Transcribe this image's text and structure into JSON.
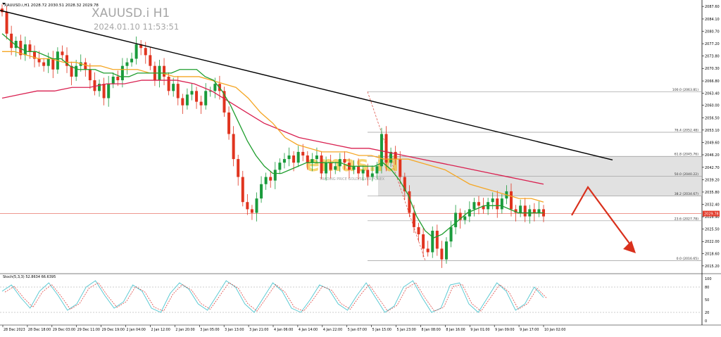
{
  "header": {
    "ohlc_line": "XAUUSD.i,H1  2028.72 2030.51 2028.32 2029.78",
    "symbol_title": "XAUUSD.i H1",
    "timestamp": "2024.01.10 11:53:51"
  },
  "watermark": {
    "text": "emas.id",
    "tagline": "TRADING PRICE GOLD/SILVER FOREX"
  },
  "price_axis": {
    "ticks": [
      "2087.60",
      "2084.10",
      "2080.70",
      "2077.20",
      "2073.80",
      "2070.30",
      "2066.80",
      "2063.40",
      "2060.00",
      "2056.50",
      "2053.10",
      "2049.60",
      "2046.20",
      "2042.70",
      "2039.20",
      "2035.80",
      "2032.40",
      "2028.90",
      "2025.50",
      "2022.00",
      "2018.60",
      "2015.20"
    ],
    "current_price_label": "2029.78",
    "range": [
      2013.8,
      2089.0
    ]
  },
  "time_axis": {
    "labels": [
      "28 Dec 2023",
      "28 Dec 18:00",
      "29 Dec 03:00",
      "29 Dec 11:00",
      "29 Dec 19:00",
      "2 Jan 04:00",
      "2 Jan 12:00",
      "2 Jan 20:00",
      "3 Jan 05:00",
      "3 Jan 13:00",
      "3 Jan 21:00",
      "4 Jan 06:00",
      "4 Jan 14:00",
      "4 Jan 22:00",
      "5 Jan 07:00",
      "5 Jan 15:00",
      "5 Jan 23:00",
      "8 Jan 08:00",
      "8 Jan 16:00",
      "9 Jan 01:00",
      "9 Jan 09:00",
      "9 Jan 17:00",
      "10 Jan 02:00"
    ]
  },
  "fibonacci": {
    "levels": [
      {
        "label": "100.0 (2063.81)",
        "price": 2063.81
      },
      {
        "label": "76.4 (2052.48)",
        "price": 2052.48
      },
      {
        "label": "61.8 (2045.76)",
        "price": 2045.76
      },
      {
        "label": "50.0 (2040.22)",
        "price": 2040.22
      },
      {
        "label": "38.2 (2034.67)",
        "price": 2034.67
      },
      {
        "label": "23.6 (2027.78)",
        "price": 2027.78
      },
      {
        "label": "0.0 (2016.65)",
        "price": 2016.65
      }
    ]
  },
  "stochastic": {
    "label": "Stoch(5,3,3) 52.8634 66.6395",
    "ticks": [
      "100",
      "80",
      "50",
      "20",
      "0"
    ],
    "range": [
      0,
      100
    ]
  },
  "colors": {
    "bull": "#1a9b3c",
    "bear": "#e0341f",
    "ma_fast": "#1f9e2e",
    "ma_mid": "#f5a623",
    "ma_slow": "#d92050",
    "trendline": "#000000",
    "zone": "#d7d7d7",
    "arrow": "#d9301c",
    "stoch_main": "#4fc6d0",
    "stoch_signal": "#d9302c",
    "watermark": "#f0b400"
  },
  "chart_data": {
    "type": "candlestick",
    "title": "XAUUSD.i H1",
    "candles_close": [
      2086,
      2080,
      2076,
      2078,
      2074,
      2077,
      2075,
      2073,
      2072,
      2071,
      2073,
      2070,
      2075,
      2074,
      2071,
      2068,
      2071,
      2072,
      2070,
      2067,
      2064,
      2066,
      2062,
      2066,
      2068,
      2067,
      2071,
      2072,
      2073,
      2077,
      2076,
      2074,
      2071,
      2067,
      2071,
      2068,
      2064,
      2066,
      2062,
      2060,
      2063,
      2064,
      2061,
      2060,
      2064,
      2064,
      2066,
      2064,
      2058,
      2052,
      2045,
      2040,
      2033,
      2031,
      2030,
      2034,
      2038,
      2040,
      2039,
      2042,
      2044,
      2045,
      2046,
      2044,
      2047,
      2046,
      2044,
      2045,
      2046,
      2041,
      2044,
      2042,
      2043,
      2045,
      2044,
      2042,
      2043,
      2041,
      2042,
      2040,
      2041,
      2043,
      2052,
      2044,
      2047,
      2045,
      2040,
      2036,
      2030,
      2026,
      2024,
      2020,
      2019,
      2025,
      2020,
      2017,
      2022,
      2026,
      2030,
      2028,
      2029,
      2031,
      2033,
      2032,
      2031,
      2033,
      2034,
      2031,
      2034,
      2036,
      2031,
      2030,
      2032,
      2029,
      2031,
      2030,
      2031,
      2029
    ],
    "moving_averages": {
      "fast": [
        2080,
        2078,
        2076,
        2075,
        2075,
        2074,
        2073,
        2073,
        2071,
        2070,
        2070,
        2070,
        2069,
        2069,
        2068,
        2068,
        2069,
        2069,
        2069,
        2069,
        2069,
        2070,
        2070,
        2070,
        2068,
        2067,
        2064,
        2060,
        2055,
        2050,
        2046,
        2043,
        2041,
        2041,
        2042,
        2043,
        2044,
        2044,
        2044,
        2044,
        2044,
        2043,
        2043,
        2043,
        2043,
        2044,
        2042,
        2039,
        2035,
        2029,
        2025,
        2023,
        2024,
        2026,
        2028,
        2030,
        2031,
        2032,
        2032,
        2032,
        2031,
        2030,
        2030,
        2030,
        2030
      ],
      "mid": [
        2075,
        2075,
        2074,
        2073,
        2073,
        2072,
        2072,
        2071,
        2071,
        2070,
        2070,
        2070,
        2069,
        2069,
        2068,
        2068,
        2068,
        2067,
        2066,
        2065,
        2062,
        2058,
        2055,
        2051,
        2049,
        2048,
        2047,
        2047,
        2047,
        2046,
        2046,
        2045,
        2045,
        2045,
        2044,
        2043,
        2042,
        2040,
        2038,
        2037,
        2036,
        2035,
        2034,
        2034,
        2033
      ],
      "slow": [
        2062,
        2063,
        2064,
        2064,
        2065,
        2065,
        2066,
        2066,
        2067,
        2067,
        2067,
        2066,
        2064,
        2061,
        2058,
        2055,
        2053,
        2051,
        2050,
        2049,
        2048,
        2048,
        2047,
        2046,
        2045,
        2044,
        2043,
        2042,
        2041,
        2040,
        2039,
        2038
      ]
    },
    "trendline": [
      {
        "time": "28 Dec 2023",
        "price": 2086.5
      },
      {
        "time": "9 Jan 17:00",
        "price": 2047.5
      }
    ],
    "projection": "down",
    "stochastic_main": [
      70,
      85,
      55,
      30,
      70,
      90,
      60,
      25,
      40,
      80,
      95,
      60,
      30,
      45,
      85,
      70,
      30,
      20,
      65,
      90,
      75,
      40,
      25,
      60,
      95,
      80,
      40,
      20,
      55,
      90,
      70,
      30,
      20,
      50,
      85,
      75,
      40,
      25,
      60,
      90,
      55,
      20,
      35,
      80,
      95,
      55,
      20,
      30,
      85,
      90,
      40,
      20,
      55,
      90,
      70,
      25,
      40,
      80,
      55
    ]
  }
}
